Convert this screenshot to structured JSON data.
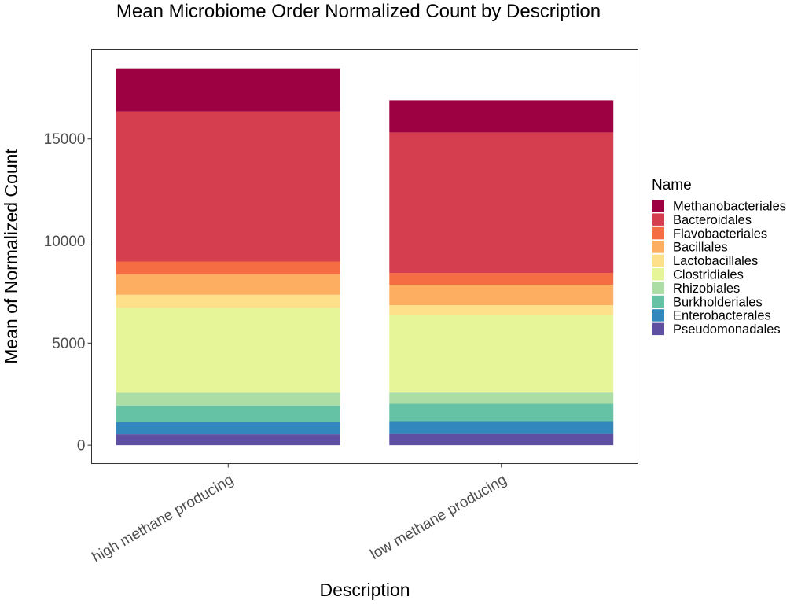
{
  "chart_data": {
    "type": "bar",
    "stacked": true,
    "title": "Mean Microbiome Order Normalized Count by Description",
    "xlabel": "Description",
    "ylabel": "Mean of Normalized Count",
    "ylim": [
      -900,
      19400
    ],
    "yticks": [
      0,
      5000,
      10000,
      15000
    ],
    "ytick_labels": [
      "0",
      "5000",
      "10000",
      "15000"
    ],
    "grid": false,
    "categories": [
      "high methane producing",
      "low methane producing"
    ],
    "legend": {
      "title": "Name",
      "position": "right"
    },
    "series": [
      {
        "name": "Pseudomonadales",
        "color": "#5E4FA2",
        "values": [
          540,
          560
        ]
      },
      {
        "name": "Enterobacterales",
        "color": "#3288BD",
        "values": [
          600,
          620
        ]
      },
      {
        "name": "Burkholderiales",
        "color": "#66C2A5",
        "values": [
          800,
          850
        ]
      },
      {
        "name": "Rhizobiales",
        "color": "#ABDDA4",
        "values": [
          630,
          550
        ]
      },
      {
        "name": "Clostridiales",
        "color": "#E6F598",
        "values": [
          4150,
          3820
        ]
      },
      {
        "name": "Lactobacillales",
        "color": "#FEE08B",
        "values": [
          650,
          460
        ]
      },
      {
        "name": "Bacillales",
        "color": "#FDAE61",
        "values": [
          1000,
          1000
        ]
      },
      {
        "name": "Flavobacteriales",
        "color": "#F46D43",
        "values": [
          630,
          580
        ]
      },
      {
        "name": "Bacteroidales",
        "color": "#D53E4F",
        "values": [
          7350,
          6880
        ]
      },
      {
        "name": "Methanobacteriales",
        "color": "#9E0142",
        "values": [
          2080,
          1580
        ]
      }
    ]
  }
}
